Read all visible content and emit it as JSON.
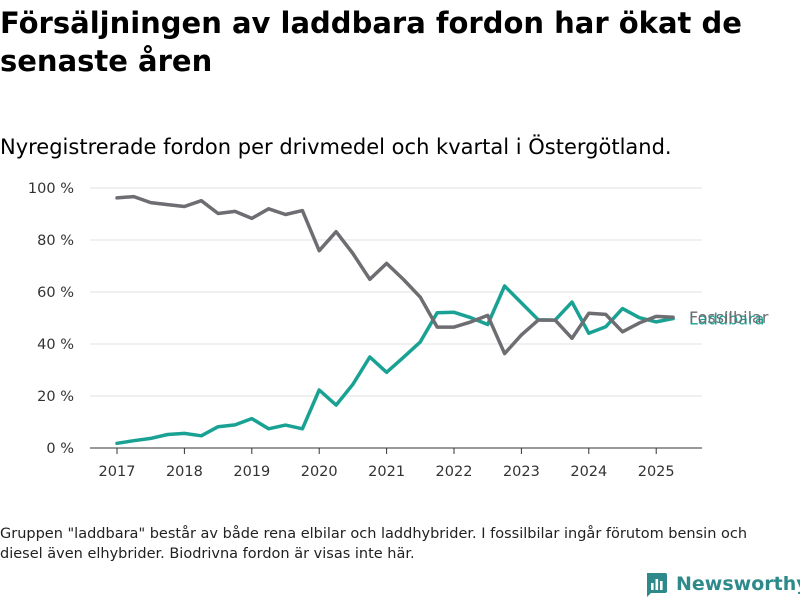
{
  "title": "Försäljningen av laddbara fordon har ökat de senaste åren",
  "subtitle": "Nyregistrerade fordon per drivmedel och kvartal i Östergötland.",
  "note": "Gruppen \"laddbara\" består av både rena elbilar och laddhybrider. I fossilbilar ingår förutom bensin och diesel även elhybrider. Biodrivna fordon är visas inte här.",
  "brand": {
    "name": "Newsworthy",
    "icon": "newsworthy-logo-icon",
    "color": "#2e8a8a"
  },
  "chart_data": {
    "type": "line",
    "ylim": [
      0,
      100
    ],
    "y_ticks": [
      0,
      20,
      40,
      60,
      80,
      100
    ],
    "y_tick_suffix": " %",
    "x_ticks": [
      "2017",
      "2018",
      "2019",
      "2020",
      "2021",
      "2022",
      "2023",
      "2024",
      "2025"
    ],
    "x_start_year": 2017,
    "grid": "horizontal",
    "legend": "line-end labels",
    "series": [
      {
        "name": "Fossilbilar",
        "color": "#6d6d72",
        "values": [
          96.2,
          96.7,
          94.4,
          93.6,
          92.9,
          95.1,
          90.2,
          91.0,
          88.3,
          92.0,
          89.8,
          91.3,
          75.9,
          83.2,
          74.8,
          64.9,
          71.0,
          64.8,
          58.0,
          46.5,
          46.5,
          48.5,
          51.0,
          36.3,
          43.5,
          49.2,
          49.2,
          42.2,
          51.8,
          51.4,
          44.7,
          48.1,
          50.6,
          50.3
        ]
      },
      {
        "name": "Laddbara",
        "color": "#19a294",
        "values": [
          1.8,
          2.8,
          3.7,
          5.2,
          5.6,
          4.7,
          8.2,
          8.9,
          11.3,
          7.4,
          8.8,
          7.4,
          22.3,
          16.5,
          24.5,
          35.0,
          29.1,
          34.9,
          40.8,
          52.0,
          52.2,
          50.1,
          47.5,
          62.3,
          55.8,
          49.3,
          49.2,
          56.1,
          44.1,
          46.6,
          53.6,
          50.1,
          48.5,
          49.8
        ]
      }
    ]
  }
}
